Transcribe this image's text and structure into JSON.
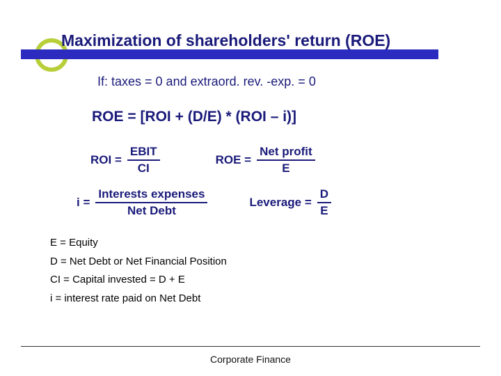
{
  "colors": {
    "title_bar": "#2b2bc0",
    "circle_border": "#b8cf3a",
    "text_primary": "#1a1a7a",
    "text_legend": "#000000",
    "background": "#ffffff",
    "footer_rule": "#333333"
  },
  "title": "Maximization of shareholders' return (ROE)",
  "if_line": "If: taxes = 0   and extraord. rev. -exp. = 0",
  "roe_equation": "ROE = [ROI + (D/E) * (ROI – i)]",
  "formulas": {
    "roi": {
      "lhs": "ROI =",
      "num": "EBIT",
      "den": "CI"
    },
    "roe": {
      "lhs": "ROE =",
      "num": "Net profit",
      "den": "E"
    },
    "i": {
      "lhs": "i =",
      "num": "Interests expenses",
      "den": "Net Debt"
    },
    "lev": {
      "lhs": "Leverage =",
      "num": "D",
      "den": "E"
    }
  },
  "legend": [
    "E = Equity",
    "D = Net Debt or Net Financial Position",
    "CI = Capital invested = D + E",
    "i = interest rate paid on Net Debt"
  ],
  "footer": "Corporate Finance",
  "typography": {
    "title_fontsize": 23,
    "body_fontsize": 18,
    "equation_fontsize": 21,
    "formula_fontsize": 17,
    "legend_fontsize": 15,
    "footer_fontsize": 14
  }
}
